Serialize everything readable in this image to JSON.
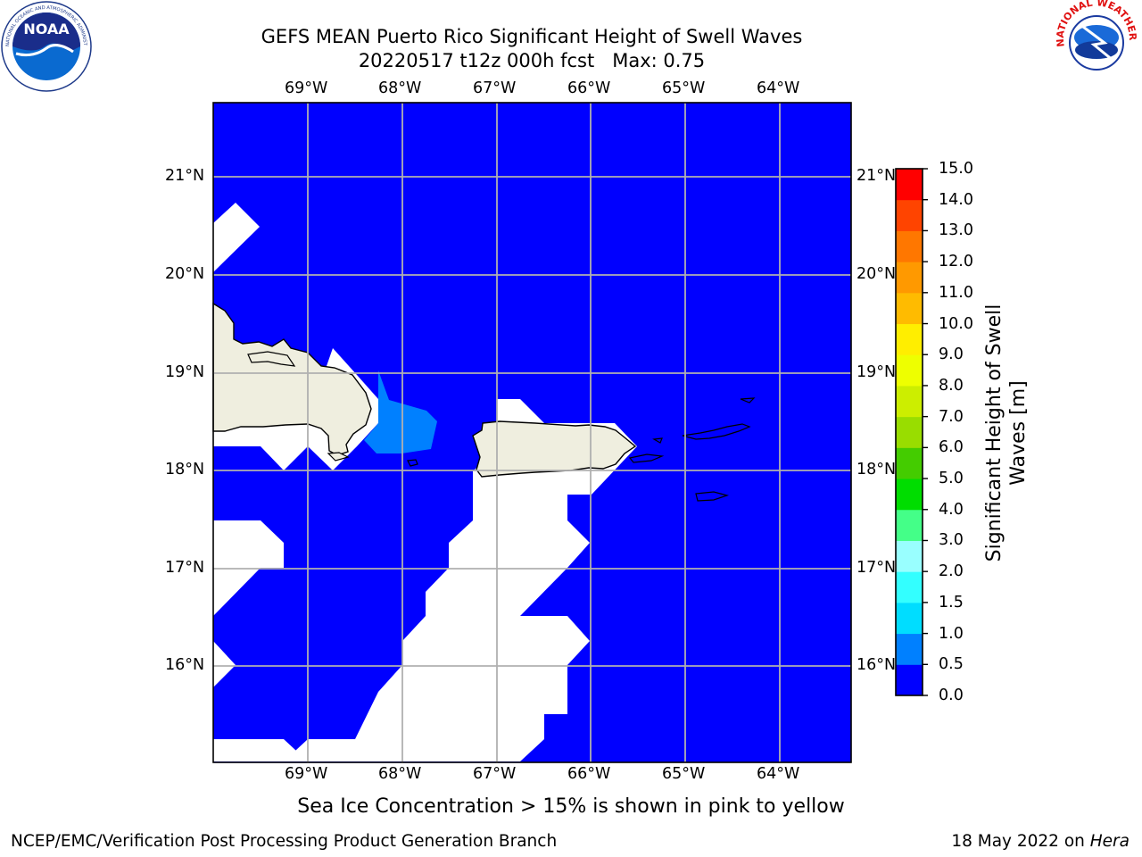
{
  "title": {
    "line1": "GEFS MEAN Puerto Rico Significant Height of Swell Waves",
    "line2": "20220517 t12z 000h fcst   Max: 0.75"
  },
  "logos": {
    "noaa": {
      "name": "noaa-logo",
      "text": "NOAA",
      "ring_text": "NATIONAL OCEANIC AND ATMOSPHERIC ADMINISTRATION · U.S. DEPARTMENT OF COMMERCE"
    },
    "nws": {
      "name": "nws-logo",
      "ring_text": "NATIONAL WEATHER SERVICE"
    }
  },
  "map": {
    "lon_ticks": [
      "69°W",
      "68°W",
      "67°W",
      "66°W",
      "65°W",
      "64°W"
    ],
    "lat_ticks": [
      "21°N",
      "20°N",
      "19°N",
      "18°N",
      "17°N",
      "16°N"
    ],
    "lon_range": [
      -70.0,
      -63.25
    ],
    "lat_range": [
      15.0,
      21.75
    ],
    "grid": true,
    "colors": {
      "ocean_0_05": "#0000ff",
      "ocean_05_10": "#0080ff",
      "land": "#efeedf",
      "missing": "#ffffff",
      "grid": "#b0b0b0"
    }
  },
  "colorbar": {
    "label_line1": "Significant Height of Swell",
    "label_line2": "Waves [m]",
    "ticks": [
      "0.0",
      "0.5",
      "1.0",
      "1.5",
      "2.0",
      "3.0",
      "4.0",
      "5.0",
      "6.0",
      "7.0",
      "8.0",
      "9.0",
      "10.0",
      "11.0",
      "12.0",
      "13.0",
      "14.0",
      "15.0"
    ],
    "colors": [
      "#0000ff",
      "#0080ff",
      "#00ddff",
      "#33ffff",
      "#99ffff",
      "#44ff88",
      "#00dd00",
      "#44cc00",
      "#99dd00",
      "#ccee00",
      "#eeff00",
      "#ffee00",
      "#ffbb00",
      "#ff9900",
      "#ff7700",
      "#ff4400",
      "#ff0000"
    ]
  },
  "note": "Sea Ice Concentration > 15% is shown in pink to yellow",
  "footer": {
    "left": "NCEP/EMC/Verification Post Processing Product Generation Branch",
    "right_date": "18 May 2022 on ",
    "right_host": "Hera"
  }
}
